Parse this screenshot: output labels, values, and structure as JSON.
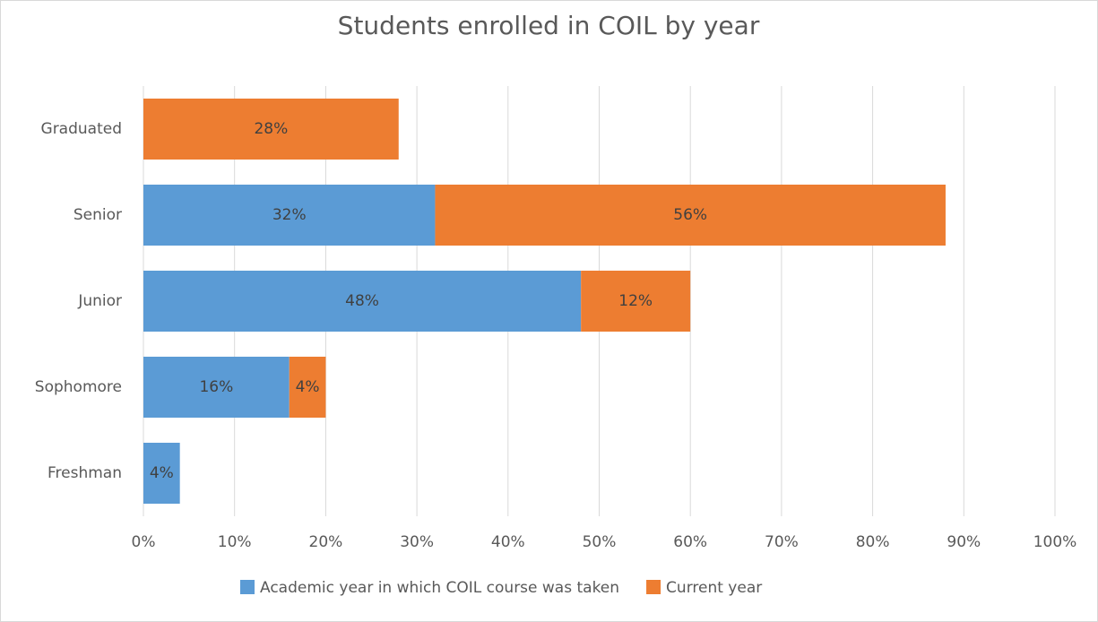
{
  "chart_data": {
    "type": "stacked_barh",
    "title": "Students enrolled in COIL by year",
    "categories": [
      "Graduated",
      "Senior",
      "Junior",
      "Sophomore",
      "Freshman"
    ],
    "series": [
      {
        "name": "Academic year in which COIL course was taken",
        "color": "#5b9bd5",
        "values": [
          null,
          32,
          48,
          16,
          4
        ],
        "value_labels": [
          null,
          "32%",
          "48%",
          "16%",
          "4%"
        ]
      },
      {
        "name": "Current year",
        "color": "#ed7d31",
        "values": [
          28,
          56,
          12,
          4,
          null
        ],
        "value_labels": [
          "28%",
          "56%",
          "12%",
          "4%",
          null
        ]
      }
    ],
    "xlim": [
      0,
      100
    ],
    "xticks": [
      {
        "value": 0,
        "label": "0%"
      },
      {
        "value": 10,
        "label": "10%"
      },
      {
        "value": 20,
        "label": "20%"
      },
      {
        "value": 30,
        "label": "30%"
      },
      {
        "value": 40,
        "label": "40%"
      },
      {
        "value": 50,
        "label": "50%"
      },
      {
        "value": 60,
        "label": "60%"
      },
      {
        "value": 70,
        "label": "70%"
      },
      {
        "value": 80,
        "label": "80%"
      },
      {
        "value": 90,
        "label": "90%"
      },
      {
        "value": 100,
        "label": "100%"
      }
    ],
    "grid": true,
    "legend": "bottom"
  }
}
